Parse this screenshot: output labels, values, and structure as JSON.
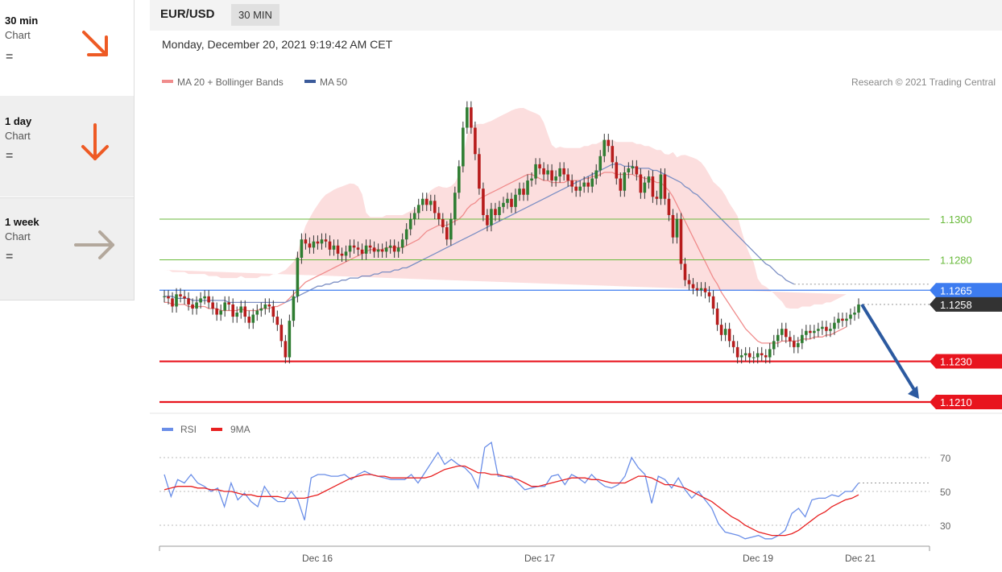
{
  "sidebar": {
    "items": [
      {
        "title": "30 min",
        "sub": "Chart",
        "eq": "=",
        "arrow": "down-right-arrow-icon",
        "color": "#ee5a24"
      },
      {
        "title": "1 day",
        "sub": "Chart",
        "eq": "=",
        "arrow": "down-arrow-icon",
        "color": "#ee5a24"
      },
      {
        "title": "1 week",
        "sub": "Chart",
        "eq": "=",
        "arrow": "right-arrow-icon",
        "color": "#b3a89c"
      }
    ]
  },
  "header": {
    "pair": "EUR/USD",
    "timeframe": "30 MIN",
    "datetime": "Monday, December 20, 2021 9:19:42 AM CET"
  },
  "legend": {
    "ma20": "MA 20 + Bollinger Bands",
    "ma50": "MA 50",
    "credit": "Research © 2021 Trading Central",
    "ma20_color": "#f08c8c",
    "ma50_color": "#3a5a9a"
  },
  "rsi_legend": {
    "rsi": "RSI",
    "ma9": "9MA",
    "rsi_color": "#6a8ee8",
    "ma9_color": "#e82020"
  },
  "chart_data": {
    "type": "candlestick",
    "x_ticks": [
      "Dec 16",
      "Dec 17",
      "Dec 19",
      "Dec 21"
    ],
    "levels": [
      {
        "value": 1.13,
        "label": "1.1300",
        "kind": "resistance",
        "color": "#6aba3c"
      },
      {
        "value": 1.128,
        "label": "1.1280",
        "kind": "resistance",
        "color": "#6aba3c"
      },
      {
        "value": 1.1265,
        "label": "1.1265",
        "kind": "pivot",
        "color": "#3d7cf0"
      },
      {
        "value": 1.1258,
        "label": "1.1258",
        "kind": "last-price",
        "color": "#333333"
      },
      {
        "value": 1.123,
        "label": "1.1230",
        "kind": "support",
        "color": "#e8141e"
      },
      {
        "value": 1.121,
        "label": "1.1210",
        "kind": "support",
        "color": "#e8141e"
      }
    ],
    "forecast_arrow": {
      "from": 1.1258,
      "to": 1.121,
      "direction": "down"
    },
    "price_close": [
      1.1262,
      1.1261,
      1.1257,
      1.1263,
      1.1262,
      1.1261,
      1.1258,
      1.1256,
      1.1259,
      1.1261,
      1.1262,
      1.1259,
      1.1256,
      1.1253,
      1.1255,
      1.1259,
      1.1258,
      1.1252,
      1.1254,
      1.1257,
      1.1252,
      1.1249,
      1.1253,
      1.1255,
      1.1256,
      1.1258,
      1.1257,
      1.1252,
      1.1248,
      1.124,
      1.1232,
      1.125,
      1.1262,
      1.1281,
      1.129,
      1.1288,
      1.1286,
      1.1289,
      1.1288,
      1.129,
      1.1289,
      1.1285,
      1.1287,
      1.1283,
      1.1282,
      1.1284,
      1.1287,
      1.1286,
      1.1285,
      1.1283,
      1.1287,
      1.1286,
      1.1284,
      1.1285,
      1.1284,
      1.1286,
      1.1287,
      1.1284,
      1.1286,
      1.129,
      1.1295,
      1.13,
      1.1303,
      1.1307,
      1.131,
      1.1307,
      1.1309,
      1.1303,
      1.13,
      1.1296,
      1.129,
      1.13,
      1.1313,
      1.1326,
      1.1345,
      1.1355,
      1.1345,
      1.1332,
      1.1315,
      1.1302,
      1.1297,
      1.1305,
      1.1302,
      1.1306,
      1.1308,
      1.131,
      1.1306,
      1.1312,
      1.1315,
      1.1312,
      1.1319,
      1.132,
      1.1327,
      1.1325,
      1.1322,
      1.1324,
      1.1319,
      1.1321,
      1.1325,
      1.1322,
      1.1319,
      1.1316,
      1.1314,
      1.1316,
      1.1318,
      1.1316,
      1.132,
      1.1324,
      1.1331,
      1.1339,
      1.1336,
      1.1328,
      1.132,
      1.1314,
      1.1323,
      1.1325,
      1.1326,
      1.1322,
      1.1313,
      1.1318,
      1.1321,
      1.1311,
      1.131,
      1.1322,
      1.131,
      1.1302,
      1.1291,
      1.13,
      1.1278,
      1.127,
      1.1268,
      1.1266,
      1.1265,
      1.1266,
      1.1264,
      1.1262,
      1.1256,
      1.1248,
      1.1243,
      1.1246,
      1.124,
      1.1237,
      1.1232,
      1.1233,
      1.1234,
      1.1232,
      1.1232,
      1.1234,
      1.1233,
      1.1232,
      1.1236,
      1.124,
      1.1243,
      1.1246,
      1.1242,
      1.124,
      1.1237,
      1.1239,
      1.1243,
      1.1245,
      1.1244,
      1.1245,
      1.1246,
      1.1247,
      1.1245,
      1.1246,
      1.1249,
      1.1251,
      1.125,
      1.1251,
      1.1253,
      1.1254,
      1.1258
    ],
    "ma20": [
      1.1259,
      1.1259,
      1.1258,
      1.1258,
      1.1258,
      1.1258,
      1.1257,
      1.1257,
      1.1257,
      1.1257,
      1.1257,
      1.1256,
      1.1256,
      1.1256,
      1.1255,
      1.1255,
      1.1255,
      1.1255,
      1.1255,
      1.1256,
      1.1255,
      1.1255,
      1.1255,
      1.1255,
      1.1256,
      1.1256,
      1.1256,
      1.1257,
      1.1257,
      1.1258,
      1.1259,
      1.1261,
      1.1263,
      1.1265,
      1.1267,
      1.1269,
      1.127,
      1.1271,
      1.1272,
      1.1273,
      1.1274,
      1.1275,
      1.1276,
      1.1277,
      1.1278,
      1.1279,
      1.128,
      1.1281,
      1.1282,
      1.1283,
      1.1284,
      1.1285,
      1.1285,
      1.1285,
      1.1285,
      1.1286,
      1.1286,
      1.1286,
      1.1286,
      1.1286,
      1.1287,
      1.1288,
      1.1289,
      1.129,
      1.1292,
      1.1294,
      1.1295,
      1.1296,
      1.1297,
      1.1297,
      1.1297,
      1.1298,
      1.1299,
      1.13,
      1.1302,
      1.1305,
      1.1307,
      1.1308,
      1.131,
      1.1311,
      1.1312,
      1.1313,
      1.1314,
      1.1315,
      1.1316,
      1.1317,
      1.1318,
      1.1319,
      1.132,
      1.1321,
      1.1322,
      1.1322,
      1.1321,
      1.132,
      1.1319,
      1.1319,
      1.1318,
      1.1318,
      1.1318,
      1.1318,
      1.1319,
      1.1319,
      1.1319,
      1.1319,
      1.132,
      1.132,
      1.1321,
      1.1321,
      1.1322,
      1.1323,
      1.1323,
      1.1323,
      1.1322,
      1.1322,
      1.1322,
      1.1322,
      1.1322,
      1.1321,
      1.1321,
      1.132,
      1.132,
      1.1319,
      1.1318,
      1.1318,
      1.1316,
      1.1314,
      1.1311,
      1.1307,
      1.1303,
      1.1299,
      1.1295,
      1.1291,
      1.1287,
      1.1283,
      1.1279,
      1.1275,
      1.1271,
      1.1268,
      1.1264,
      1.1261,
      1.1258,
      1.1255,
      1.1252,
      1.1249,
      1.1246,
      1.1244,
      1.1242,
      1.124,
      1.1239,
      1.1239,
      1.1239,
      1.1239,
      1.1239,
      1.124,
      1.124,
      1.124,
      1.124,
      1.124,
      1.1241,
      1.1241,
      1.1241,
      1.1242,
      1.1242,
      1.1242,
      1.1243,
      1.1243,
      1.1244,
      1.1245,
      1.1246,
      1.1247
    ],
    "ma50": [
      1.1262,
      1.1262,
      1.1262,
      1.1261,
      1.1261,
      1.1261,
      1.1261,
      1.126,
      1.126,
      1.126,
      1.126,
      1.126,
      1.126,
      1.126,
      1.126,
      1.126,
      1.1259,
      1.1259,
      1.1259,
      1.1259,
      1.1259,
      1.1259,
      1.1259,
      1.1259,
      1.1259,
      1.1259,
      1.1259,
      1.1259,
      1.1259,
      1.1259,
      1.1259,
      1.126,
      1.1261,
      1.1262,
      1.1263,
      1.1264,
      1.1265,
      1.1266,
      1.1267,
      1.1267,
      1.1268,
      1.1268,
      1.1269,
      1.1269,
      1.127,
      1.127,
      1.1271,
      1.1271,
      1.1271,
      1.1272,
      1.1272,
      1.1272,
      1.1273,
      1.1273,
      1.1274,
      1.1274,
      1.1274,
      1.1275,
      1.1275,
      1.1276,
      1.1276,
      1.1277,
      1.1278,
      1.1279,
      1.128,
      1.1281,
      1.1282,
      1.1283,
      1.1284,
      1.1285,
      1.1286,
      1.1287,
      1.1288,
      1.1289,
      1.129,
      1.1291,
      1.1292,
      1.1293,
      1.1294,
      1.1295,
      1.1296,
      1.1297,
      1.1298,
      1.1299,
      1.13,
      1.1301,
      1.1302,
      1.1303,
      1.1304,
      1.1305,
      1.1306,
      1.1307,
      1.1308,
      1.1309,
      1.131,
      1.1311,
      1.1312,
      1.1313,
      1.1314,
      1.1315,
      1.1316,
      1.1317,
      1.1318,
      1.1319,
      1.132,
      1.1321,
      1.1322,
      1.1323,
      1.1324,
      1.1325,
      1.1326,
      1.1327,
      1.1327,
      1.1327,
      1.1326,
      1.1326,
      1.1326,
      1.1325,
      1.1325,
      1.1325,
      1.1325,
      1.1324,
      1.1324,
      1.1323,
      1.1322,
      1.1321,
      1.132,
      1.1319,
      1.1318,
      1.1316,
      1.1315,
      1.1313,
      1.1312,
      1.131,
      1.1308,
      1.1306,
      1.1304,
      1.1302,
      1.13,
      1.1298,
      1.1296,
      1.1294,
      1.1292,
      1.129,
      1.1288,
      1.1286,
      1.1284,
      1.1282,
      1.128,
      1.1278,
      1.1277,
      1.1275,
      1.1273,
      1.1272,
      1.127,
      1.1269,
      1.1268
    ],
    "rsi_ticks": [
      70,
      50,
      30
    ],
    "rsi": [
      60,
      47,
      57,
      55,
      60,
      55,
      53,
      50,
      52,
      41,
      55,
      45,
      49,
      44,
      41,
      53,
      47,
      44,
      44,
      50,
      45,
      33,
      58,
      60,
      60,
      59,
      59,
      60,
      57,
      60,
      62,
      60,
      59,
      58,
      57,
      57,
      57,
      60,
      55,
      61,
      67,
      73,
      66,
      69,
      66,
      64,
      60,
      52,
      76,
      79,
      59,
      59,
      59,
      55,
      51,
      52,
      53,
      53,
      59,
      60,
      54,
      60,
      58,
      55,
      60,
      56,
      53,
      52,
      54,
      59,
      70,
      64,
      60,
      43,
      59,
      57,
      52,
      58,
      51,
      46,
      50,
      45,
      40,
      31,
      26,
      25,
      24,
      22,
      23,
      24,
      22,
      22,
      24,
      27,
      37,
      40,
      35,
      45,
      46,
      46,
      48,
      47,
      50,
      50,
      55
    ],
    "rsi_ma9": [
      51,
      52,
      53,
      53,
      53,
      52,
      52,
      51,
      51,
      50,
      50,
      49,
      48,
      48,
      47,
      47,
      47,
      47,
      46,
      46,
      46,
      46,
      47,
      48,
      50,
      52,
      54,
      56,
      58,
      59,
      60,
      60,
      59,
      59,
      58,
      58,
      58,
      58,
      58,
      58,
      59,
      61,
      63,
      64,
      65,
      65,
      63,
      61,
      61,
      60,
      60,
      59,
      58,
      57,
      55,
      53,
      53,
      54,
      55,
      56,
      57,
      58,
      58,
      58,
      57,
      57,
      56,
      55,
      55,
      55,
      57,
      59,
      59,
      58,
      56,
      54,
      54,
      53,
      52,
      50,
      48,
      46,
      44,
      41,
      38,
      35,
      33,
      30,
      28,
      26,
      25,
      24,
      24,
      24,
      25,
      27,
      30,
      33,
      36,
      38,
      41,
      43,
      45,
      46,
      48
    ]
  }
}
